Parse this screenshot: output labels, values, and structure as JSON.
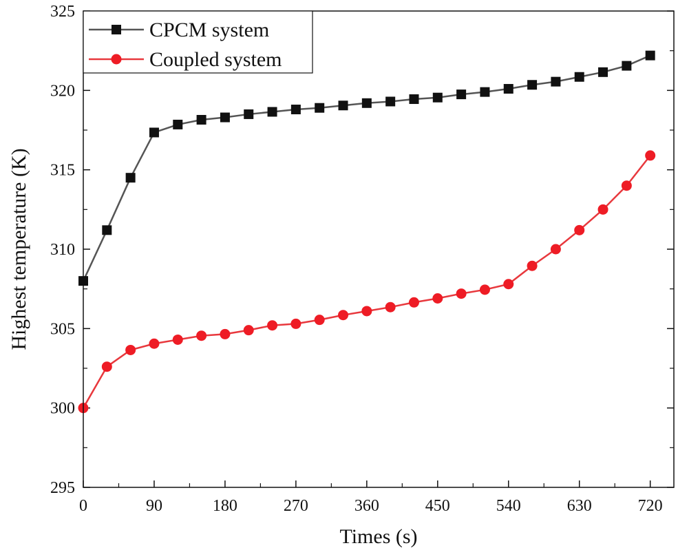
{
  "chart_data": {
    "type": "line",
    "title": "",
    "xlabel": "Times (s)",
    "ylabel": "Highest temperature (K)",
    "xlim": [
      0,
      750
    ],
    "ylim": [
      295,
      325
    ],
    "xticks": [
      0,
      90,
      180,
      270,
      360,
      450,
      540,
      630,
      720
    ],
    "yticks": [
      295,
      300,
      305,
      310,
      315,
      320,
      325
    ],
    "legend_position": "top-left",
    "x": [
      0,
      30,
      60,
      90,
      120,
      150,
      180,
      210,
      240,
      270,
      300,
      330,
      360,
      390,
      420,
      450,
      480,
      510,
      540,
      570,
      600,
      630,
      660,
      690,
      720
    ],
    "series": [
      {
        "name": "CPCM system",
        "color": "#555555",
        "marker": "square",
        "marker_color": "#111111",
        "values": [
          308.0,
          311.2,
          314.5,
          317.35,
          317.85,
          318.15,
          318.3,
          318.5,
          318.65,
          318.8,
          318.9,
          319.05,
          319.2,
          319.3,
          319.45,
          319.55,
          319.75,
          319.9,
          320.1,
          320.35,
          320.55,
          320.85,
          321.15,
          321.55,
          322.2
        ]
      },
      {
        "name": "Coupled system",
        "color": "#e8383d",
        "marker": "circle",
        "marker_color": "#ee1c25",
        "values": [
          300.0,
          302.6,
          303.65,
          304.05,
          304.3,
          304.55,
          304.65,
          304.9,
          305.2,
          305.3,
          305.55,
          305.85,
          306.1,
          306.35,
          306.65,
          306.9,
          307.2,
          307.45,
          307.8,
          308.95,
          310.0,
          311.2,
          312.5,
          314.0,
          315.9
        ]
      }
    ]
  }
}
